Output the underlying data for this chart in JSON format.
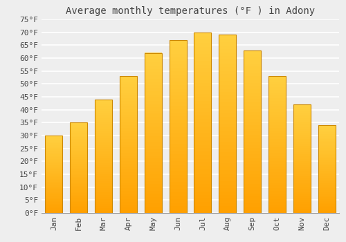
{
  "title": "Average monthly temperatures (°F ) in Adony",
  "months": [
    "Jan",
    "Feb",
    "Mar",
    "Apr",
    "May",
    "Jun",
    "Jul",
    "Aug",
    "Sep",
    "Oct",
    "Nov",
    "Dec"
  ],
  "values": [
    30,
    35,
    44,
    53,
    62,
    67,
    70,
    69,
    63,
    53,
    42,
    34
  ],
  "ylim": [
    0,
    75
  ],
  "yticks": [
    0,
    5,
    10,
    15,
    20,
    25,
    30,
    35,
    40,
    45,
    50,
    55,
    60,
    65,
    70,
    75
  ],
  "bar_color_bottom": "#FFA000",
  "bar_color_top": "#FFD040",
  "bar_edge_color": "#CC8800",
  "background_color": "#eeeeee",
  "grid_color": "#ffffff",
  "title_fontsize": 10,
  "tick_fontsize": 8,
  "font_color": "#444444",
  "font_family": "monospace",
  "bar_width": 0.7
}
